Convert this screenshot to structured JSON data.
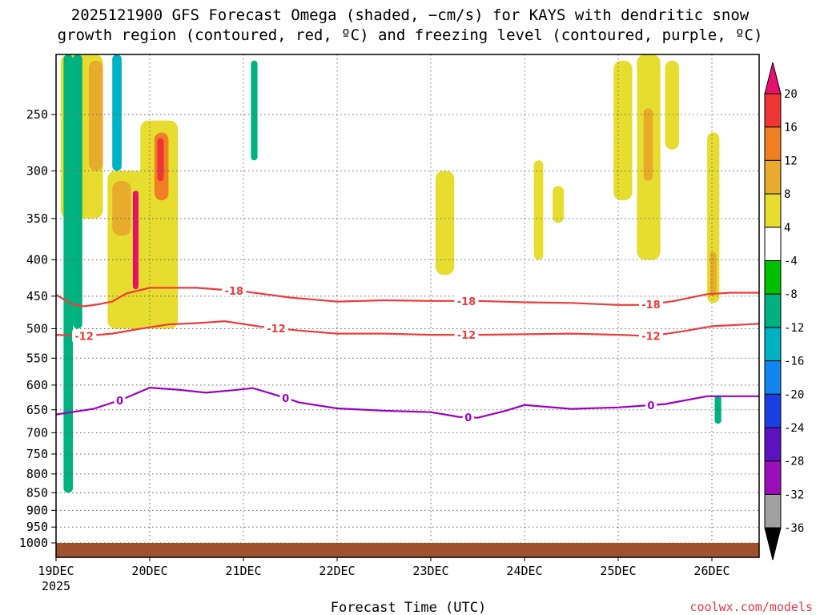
{
  "title_line1": "2025121900 GFS Forecast Omega (shaded, −cm/s) for KAYS with dendritic snow",
  "title_line2": "growth region (contoured, red, ºC) and freezing level (contoured, purple, ºC)",
  "xlabel": "Forecast Time (UTC)",
  "credit": "coolwx.com/models",
  "chart_data": {
    "type": "heatmap",
    "y_axis": {
      "kind": "pressure_hPa",
      "reversed": true,
      "range": [
        1050,
        200
      ],
      "ticks": [
        250,
        300,
        350,
        400,
        450,
        500,
        550,
        600,
        650,
        700,
        750,
        800,
        850,
        900,
        950,
        1000
      ],
      "tick_labels": [
        "250",
        "300",
        "350",
        "400",
        "450",
        "500",
        "550",
        "600",
        "650",
        "700",
        "750",
        "800",
        "850",
        "900",
        "950",
        "1000"
      ]
    },
    "x_axis": {
      "range": [
        "2025-12-19T00",
        "2025-12-26T12"
      ],
      "ticks": [
        {
          "label": "19DEC",
          "sublabel": "2025",
          "day": 0
        },
        {
          "label": "20DEC",
          "day": 1
        },
        {
          "label": "21DEC",
          "day": 2
        },
        {
          "label": "22DEC",
          "day": 3
        },
        {
          "label": "23DEC",
          "day": 4
        },
        {
          "label": "24DEC",
          "day": 5
        },
        {
          "label": "25DEC",
          "day": 6
        },
        {
          "label": "26DEC",
          "day": 7
        }
      ]
    },
    "grid": true,
    "colorbar": {
      "labels": [
        "20",
        "16",
        "12",
        "8",
        "4",
        "-4",
        "-8",
        "-12",
        "-16",
        "-20",
        "-24",
        "-28",
        "-32",
        "-36"
      ],
      "colors": [
        "#e8106e",
        "#ee3535",
        "#ef7f22",
        "#e8ac2c",
        "#e6dd2e",
        "#ffffff",
        "#00c100",
        "#00b27f",
        "#00b3c4",
        "#1185ee",
        "#1a3ee1",
        "#5a13bf",
        "#9a0ebb",
        "#a0a0a0",
        "#000000"
      ]
    },
    "contours": [
      {
        "label": "-18",
        "color": "#ef3b3b",
        "label_days": [
          1.9,
          4.38,
          6.35
        ],
        "points": [
          [
            0,
            448
          ],
          [
            0.17,
            462
          ],
          [
            0.3,
            465
          ],
          [
            0.45,
            462
          ],
          [
            0.6,
            458
          ],
          [
            0.75,
            446
          ],
          [
            1.0,
            438
          ],
          [
            1.5,
            438
          ],
          [
            2.0,
            443
          ],
          [
            2.5,
            452
          ],
          [
            3.0,
            458
          ],
          [
            3.5,
            456
          ],
          [
            4.0,
            457
          ],
          [
            4.5,
            457
          ],
          [
            5.0,
            459
          ],
          [
            5.5,
            460
          ],
          [
            6.0,
            463
          ],
          [
            6.3,
            463
          ],
          [
            6.6,
            457
          ],
          [
            6.95,
            447
          ],
          [
            7.2,
            445
          ],
          [
            7.5,
            445
          ]
        ]
      },
      {
        "label": "-12",
        "color": "#ef3b3b",
        "label_days": [
          0.3,
          2.35,
          4.38,
          6.35
        ],
        "points": [
          [
            0,
            510
          ],
          [
            0.3,
            512
          ],
          [
            0.6,
            508
          ],
          [
            0.9,
            500
          ],
          [
            1.2,
            493
          ],
          [
            1.5,
            491
          ],
          [
            1.8,
            488
          ],
          [
            2.2,
            497
          ],
          [
            2.6,
            503
          ],
          [
            3.0,
            508
          ],
          [
            3.5,
            508
          ],
          [
            4.0,
            510
          ],
          [
            4.5,
            510
          ],
          [
            5.0,
            509
          ],
          [
            5.5,
            508
          ],
          [
            6.0,
            510
          ],
          [
            6.35,
            512
          ],
          [
            6.7,
            504
          ],
          [
            7.0,
            496
          ],
          [
            7.5,
            492
          ]
        ]
      },
      {
        "label": "0",
        "color": "#9b00c4",
        "label_days": [
          0.68,
          2.45,
          4.4,
          6.35
        ],
        "points": [
          [
            0,
            660
          ],
          [
            0.4,
            648
          ],
          [
            0.7,
            629
          ],
          [
            1.0,
            605
          ],
          [
            1.3,
            609
          ],
          [
            1.6,
            615
          ],
          [
            1.9,
            610
          ],
          [
            2.1,
            606
          ],
          [
            2.3,
            617
          ],
          [
            2.6,
            635
          ],
          [
            3.0,
            647
          ],
          [
            3.5,
            652
          ],
          [
            4.0,
            655
          ],
          [
            4.3,
            665
          ],
          [
            4.5,
            667
          ],
          [
            4.8,
            652
          ],
          [
            5.0,
            640
          ],
          [
            5.5,
            648
          ],
          [
            6.0,
            645
          ],
          [
            6.5,
            638
          ],
          [
            6.95,
            622
          ],
          [
            7.2,
            622
          ],
          [
            7.5,
            622
          ]
        ]
      }
    ],
    "shaded_regions": [
      {
        "value": 6,
        "day_range": [
          0.9,
          1.3
        ],
        "p_range": [
          255,
          500
        ]
      },
      {
        "value": 14,
        "day_range": [
          1.05,
          1.2
        ],
        "p_range": [
          265,
          330
        ]
      },
      {
        "value": 18,
        "day_range": [
          1.08,
          1.15
        ],
        "p_range": [
          270,
          310
        ]
      },
      {
        "value": 6,
        "day_range": [
          0.55,
          0.95
        ],
        "p_range": [
          300,
          500
        ]
      },
      {
        "value": 10,
        "day_range": [
          0.6,
          0.8
        ],
        "p_range": [
          310,
          370
        ]
      },
      {
        "value": 20,
        "day_range": [
          0.82,
          0.88
        ],
        "p_range": [
          320,
          440
        ]
      },
      {
        "value": 6,
        "day_range": [
          0.05,
          0.5
        ],
        "p_range": [
          200,
          350
        ]
      },
      {
        "value": 8,
        "day_range": [
          0.35,
          0.5
        ],
        "p_range": [
          210,
          300
        ]
      },
      {
        "value": -8,
        "day_range": [
          0.08,
          0.18
        ],
        "p_range": [
          200,
          850
        ]
      },
      {
        "value": -8,
        "day_range": [
          0.18,
          0.28
        ],
        "p_range": [
          200,
          500
        ]
      },
      {
        "value": -12,
        "day_range": [
          0.6,
          0.7
        ],
        "p_range": [
          200,
          300
        ]
      },
      {
        "value": -8,
        "day_range": [
          2.08,
          2.15
        ],
        "p_range": [
          210,
          290
        ]
      },
      {
        "value": 6,
        "day_range": [
          4.05,
          4.25
        ],
        "p_range": [
          300,
          420
        ]
      },
      {
        "value": 6,
        "day_range": [
          5.1,
          5.2
        ],
        "p_range": [
          290,
          400
        ]
      },
      {
        "value": 6,
        "day_range": [
          5.3,
          5.42
        ],
        "p_range": [
          315,
          355
        ]
      },
      {
        "value": 6,
        "day_range": [
          5.95,
          6.15
        ],
        "p_range": [
          210,
          330
        ]
      },
      {
        "value": 6,
        "day_range": [
          6.2,
          6.45
        ],
        "p_range": [
          200,
          400
        ]
      },
      {
        "value": 10,
        "day_range": [
          6.27,
          6.37
        ],
        "p_range": [
          245,
          310
        ]
      },
      {
        "value": 6,
        "day_range": [
          6.5,
          6.65
        ],
        "p_range": [
          210,
          280
        ]
      },
      {
        "value": 6,
        "day_range": [
          6.95,
          7.08
        ],
        "p_range": [
          265,
          460
        ]
      },
      {
        "value": 10,
        "day_range": [
          6.98,
          7.05
        ],
        "p_range": [
          390,
          450
        ]
      },
      {
        "value": -8,
        "day_range": [
          7.03,
          7.1
        ],
        "p_range": [
          620,
          680
        ]
      }
    ]
  }
}
